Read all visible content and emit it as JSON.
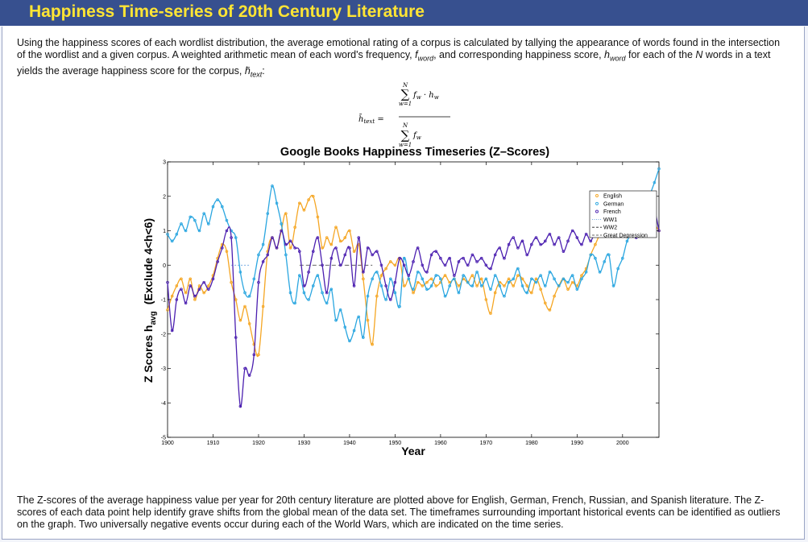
{
  "banner": {
    "title": "Happiness Time-series of 20th Century Literature"
  },
  "intro": {
    "text_before_fword": "Using the happiness scores of each wordlist distribution, the average emotional rating of a corpus is calculated by tallying the appearance of words found in the intersection of the wordlist and a given corpus. A weighted arithmetic mean of each word's frequency, ",
    "fword": "fword",
    "text_mid1": ", and corresponding happiness score, ",
    "hword": "hword",
    "text_mid2": " for each of the ",
    "N": "N",
    "text_mid3": " words in a text yields the average happiness score for the corpus, ",
    "htext": "htext",
    "text_end": ":"
  },
  "formula": {
    "lhs": "htext =",
    "numerator": "fw · hw",
    "denominator": "fw",
    "sum_top": "N",
    "sum_bottom": "w=1"
  },
  "outro": {
    "text": "The Z-scores of the average happiness value per year for 20th century literature are plotted above for English, German, French, Russian, and Spanish literature. The Z-scores of each data point help identify grave shifts from the global mean of the data set. The timeframes surrounding important historical events can be identified as outliers on the graph. Two universally negative events occur during each of the World Wars, which are indicated on the time series."
  },
  "chart_data": {
    "type": "line",
    "title": "Google Books Happiness Timeseries (Z–Scores)",
    "xlabel": "Year",
    "ylabel": "Z Scores h_avg (Exclude 4<h<6)",
    "ylabel_main": "Z Scores h",
    "ylabel_sub": "avg",
    "ylabel_extra": "(Exclude 4<h<6)",
    "xlim": [
      1900,
      2008
    ],
    "ylim": [
      -5,
      3
    ],
    "xticks": [
      1900,
      1910,
      1920,
      1930,
      1940,
      1950,
      1960,
      1970,
      1980,
      1990,
      2000
    ],
    "yticks": [
      -5,
      -4,
      -3,
      -2,
      -1,
      0,
      1,
      2,
      3
    ],
    "legend_placement": "top-right",
    "grid": false,
    "series": [
      {
        "name": "English",
        "color": "#f5a623",
        "x": [
          1900,
          1901,
          1902,
          1903,
          1904,
          1905,
          1906,
          1907,
          1908,
          1909,
          1910,
          1911,
          1912,
          1913,
          1914,
          1915,
          1916,
          1917,
          1918,
          1919,
          1920,
          1921,
          1922,
          1923,
          1924,
          1925,
          1926,
          1927,
          1928,
          1929,
          1930,
          1931,
          1932,
          1933,
          1934,
          1935,
          1936,
          1937,
          1938,
          1939,
          1940,
          1941,
          1942,
          1943,
          1944,
          1945,
          1946,
          1947,
          1948,
          1949,
          1950,
          1951,
          1952,
          1953,
          1954,
          1955,
          1956,
          1957,
          1958,
          1959,
          1960,
          1961,
          1962,
          1963,
          1964,
          1965,
          1966,
          1967,
          1968,
          1969,
          1970,
          1971,
          1972,
          1973,
          1974,
          1975,
          1976,
          1977,
          1978,
          1979,
          1980,
          1981,
          1982,
          1983,
          1984,
          1985,
          1986,
          1987,
          1988,
          1989,
          1990,
          1991,
          1992,
          1993,
          1994,
          1995,
          1996,
          1997,
          1998,
          1999,
          2000,
          2001,
          2002,
          2003,
          2004,
          2005,
          2006,
          2007,
          2008
        ],
        "y": [
          -1.3,
          -0.9,
          -0.6,
          -0.4,
          -0.8,
          -0.4,
          -1.0,
          -0.6,
          -0.8,
          -0.6,
          -0.3,
          0.2,
          0.6,
          0.4,
          -0.5,
          -1.0,
          -1.6,
          -1.2,
          -1.7,
          -2.3,
          -2.6,
          -1.2,
          0.4,
          0.8,
          0.5,
          1.0,
          1.5,
          0.5,
          1.1,
          1.8,
          1.6,
          1.9,
          2.0,
          1.4,
          0.5,
          0.8,
          0.6,
          1.1,
          0.7,
          0.8,
          1.0,
          0.4,
          0.6,
          -0.4,
          -1.6,
          -2.3,
          -0.9,
          -0.3,
          -0.1,
          0.1,
          0.0,
          0.2,
          -0.6,
          -0.4,
          -0.8,
          -0.5,
          -0.6,
          -0.5,
          -0.4,
          -0.6,
          -0.5,
          -0.3,
          -0.5,
          -0.4,
          -0.6,
          -0.4,
          -0.5,
          -0.3,
          -0.6,
          -0.4,
          -1.0,
          -1.4,
          -0.8,
          -0.5,
          -0.6,
          -0.4,
          -0.6,
          -0.3,
          -0.4,
          -0.6,
          -0.8,
          -0.4,
          -0.7,
          -1.1,
          -1.3,
          -0.9,
          -0.6,
          -0.4,
          -0.7,
          -0.5,
          -0.6,
          -0.3,
          -0.1,
          0.3,
          0.6,
          0.9,
          1.2,
          1.0,
          1.3,
          1.4,
          1.2,
          1.6,
          1.3,
          1.5,
          1.7,
          1.8,
          1.4,
          1.2,
          1.0
        ]
      },
      {
        "name": "German",
        "color": "#2aa6e0",
        "x": [
          1900,
          1901,
          1902,
          1903,
          1904,
          1905,
          1906,
          1907,
          1908,
          1909,
          1910,
          1911,
          1912,
          1913,
          1914,
          1915,
          1916,
          1917,
          1918,
          1919,
          1920,
          1921,
          1922,
          1923,
          1924,
          1925,
          1926,
          1927,
          1928,
          1929,
          1930,
          1931,
          1932,
          1933,
          1934,
          1935,
          1936,
          1937,
          1938,
          1939,
          1940,
          1941,
          1942,
          1943,
          1944,
          1945,
          1946,
          1947,
          1948,
          1949,
          1950,
          1951,
          1952,
          1953,
          1954,
          1955,
          1956,
          1957,
          1958,
          1959,
          1960,
          1961,
          1962,
          1963,
          1964,
          1965,
          1966,
          1967,
          1968,
          1969,
          1970,
          1971,
          1972,
          1973,
          1974,
          1975,
          1976,
          1977,
          1978,
          1979,
          1980,
          1981,
          1982,
          1983,
          1984,
          1985,
          1986,
          1987,
          1988,
          1989,
          1990,
          1991,
          1992,
          1993,
          1994,
          1995,
          1996,
          1997,
          1998,
          1999,
          2000,
          2001,
          2002,
          2003,
          2004,
          2005,
          2006,
          2007,
          2008
        ],
        "y": [
          0.9,
          0.7,
          0.9,
          1.2,
          1.0,
          1.4,
          1.3,
          1.0,
          1.5,
          1.2,
          1.7,
          1.9,
          1.7,
          1.3,
          1.0,
          0.8,
          -0.2,
          -0.8,
          -0.9,
          -0.4,
          0.3,
          0.6,
          1.5,
          2.3,
          1.8,
          1.2,
          0.3,
          -0.8,
          -1.1,
          -0.3,
          -0.8,
          -1.0,
          -0.6,
          -0.3,
          -0.8,
          -1.1,
          -0.7,
          -1.6,
          -1.3,
          -1.8,
          -2.2,
          -1.9,
          -1.5,
          -2.1,
          -0.9,
          -0.4,
          -0.2,
          -0.6,
          -1.0,
          -0.4,
          -0.8,
          -1.2,
          0.2,
          -0.4,
          -0.7,
          -0.2,
          -0.4,
          -0.7,
          -0.6,
          -0.3,
          -0.4,
          -0.9,
          -0.6,
          -0.4,
          -0.8,
          -0.3,
          -0.5,
          -0.6,
          -0.2,
          -0.6,
          -0.4,
          -0.7,
          -0.3,
          -0.6,
          -0.9,
          -0.5,
          -0.4,
          -0.1,
          -0.6,
          -0.8,
          -0.4,
          -0.5,
          -0.3,
          -0.6,
          -0.2,
          -0.4,
          -0.6,
          -0.4,
          -0.5,
          -0.3,
          -0.7,
          -0.4,
          -0.2,
          0.3,
          0.2,
          -0.2,
          0.1,
          0.3,
          -0.6,
          -0.1,
          0.2,
          0.7,
          0.9,
          1.1,
          1.6,
          1.3,
          2.0,
          2.4,
          2.8
        ]
      },
      {
        "name": "French",
        "color": "#4b1fb0",
        "x": [
          1900,
          1901,
          1902,
          1903,
          1904,
          1905,
          1906,
          1907,
          1908,
          1909,
          1910,
          1911,
          1912,
          1913,
          1914,
          1915,
          1916,
          1917,
          1918,
          1919,
          1920,
          1921,
          1922,
          1923,
          1924,
          1925,
          1926,
          1927,
          1928,
          1929,
          1930,
          1931,
          1932,
          1933,
          1934,
          1935,
          1936,
          1937,
          1938,
          1939,
          1940,
          1941,
          1942,
          1943,
          1944,
          1945,
          1946,
          1947,
          1948,
          1949,
          1950,
          1951,
          1952,
          1953,
          1954,
          1955,
          1956,
          1957,
          1958,
          1959,
          1960,
          1961,
          1962,
          1963,
          1964,
          1965,
          1966,
          1967,
          1968,
          1969,
          1970,
          1971,
          1972,
          1973,
          1974,
          1975,
          1976,
          1977,
          1978,
          1979,
          1980,
          1981,
          1982,
          1983,
          1984,
          1985,
          1986,
          1987,
          1988,
          1989,
          1990,
          1991,
          1992,
          1993,
          1994,
          1995,
          1996,
          1997,
          1998,
          1999,
          2000,
          2001,
          2002,
          2003,
          2004,
          2005,
          2006,
          2007,
          2008
        ],
        "y": [
          -0.5,
          -1.9,
          -1.0,
          -0.7,
          -1.1,
          -0.6,
          -0.9,
          -0.7,
          -0.5,
          -0.7,
          -0.4,
          0.1,
          0.5,
          1.0,
          0.8,
          -2.1,
          -4.1,
          -3.0,
          -3.2,
          -2.6,
          -0.5,
          0.1,
          0.3,
          0.8,
          0.5,
          1.0,
          0.6,
          0.7,
          0.5,
          0.4,
          -0.6,
          -0.2,
          0.4,
          0.8,
          0.0,
          -0.8,
          0.2,
          0.5,
          0.0,
          0.3,
          0.5,
          -0.6,
          0.8,
          -0.2,
          0.5,
          0.3,
          0.4,
          0.0,
          -0.6,
          -1.0,
          -0.5,
          0.2,
          0.0,
          -0.3,
          0.1,
          0.5,
          0.0,
          -0.2,
          0.3,
          0.4,
          0.2,
          0.0,
          0.2,
          -0.3,
          0.1,
          0.2,
          0.0,
          0.3,
          0.1,
          0.2,
          0.0,
          -0.1,
          0.3,
          0.5,
          0.2,
          0.6,
          0.8,
          0.5,
          0.7,
          0.3,
          0.6,
          0.8,
          0.6,
          0.7,
          0.9,
          0.6,
          0.8,
          0.4,
          0.7,
          1.0,
          0.8,
          0.6,
          0.9,
          0.7,
          1.0,
          1.2,
          0.9,
          1.3,
          1.1,
          1.4,
          1.0,
          0.9,
          1.2,
          0.8,
          1.1,
          1.3,
          1.5,
          1.6,
          1.0
        ]
      }
    ],
    "reference_lines": [
      {
        "name": "WW1",
        "style": "dotted",
        "color": "#4a90d9"
      },
      {
        "name": "WW2",
        "style": "dashed",
        "color": "#222222"
      },
      {
        "name": "Great Depression",
        "style": "dashed",
        "color": "#333333"
      }
    ]
  }
}
